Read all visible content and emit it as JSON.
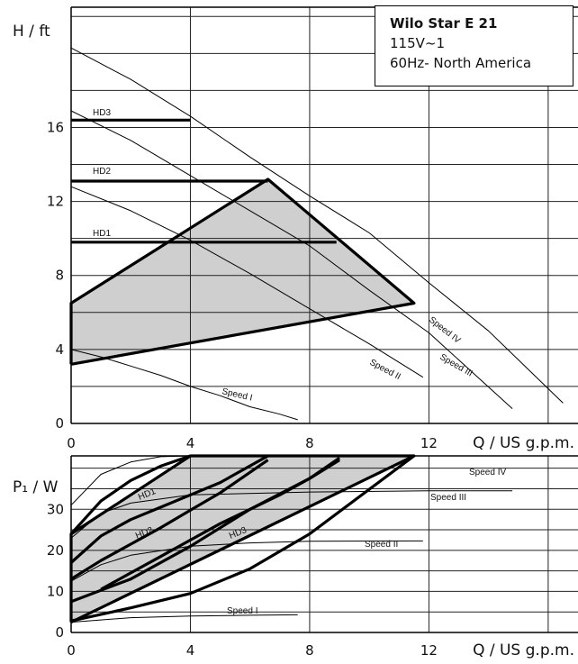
{
  "chart_data": [
    {
      "type": "line",
      "title": "Wilo Star E 21",
      "subtitle_lines": [
        "115V~1",
        "60Hz-  North America"
      ],
      "ylabel": "H / ft",
      "xlabel": "Q / US g.p.m.",
      "xlim": [
        0,
        17
      ],
      "ylim": [
        0,
        22.5
      ],
      "xticks": [
        0,
        4,
        8,
        12
      ],
      "yticks": [
        0,
        4,
        8,
        12,
        16
      ],
      "grid": true,
      "operating_region": [
        [
          0,
          3.2
        ],
        [
          0,
          6.5
        ],
        [
          6.6,
          13.2
        ],
        [
          11.5,
          6.5
        ]
      ],
      "series": [
        {
          "name": "Speed I",
          "x": [
            0,
            1,
            2,
            3,
            4,
            5,
            6,
            7,
            7.6
          ],
          "y": [
            4.0,
            3.6,
            3.1,
            2.6,
            2.0,
            1.5,
            0.9,
            0.5,
            0.2
          ]
        },
        {
          "name": "Speed II",
          "x": [
            0,
            2,
            4,
            6,
            8,
            10,
            11.8
          ],
          "y": [
            12.8,
            11.5,
            9.9,
            8.1,
            6.2,
            4.3,
            2.5
          ]
        },
        {
          "name": "Speed III",
          "x": [
            0,
            2,
            4,
            6,
            8,
            10,
            12,
            14.8
          ],
          "y": [
            16.9,
            15.3,
            13.4,
            11.5,
            9.6,
            7.2,
            4.9,
            0.8
          ]
        },
        {
          "name": "Speed IV",
          "x": [
            0,
            2,
            4,
            6,
            8,
            10,
            12,
            14,
            16.5
          ],
          "y": [
            20.3,
            18.6,
            16.6,
            14.4,
            12.3,
            10.3,
            7.6,
            5.0,
            1.1
          ]
        },
        {
          "name": "HD1",
          "x": [
            0,
            8.9
          ],
          "y": [
            9.8,
            9.8
          ]
        },
        {
          "name": "HD2",
          "x": [
            0,
            6.6
          ],
          "y": [
            13.1,
            13.1
          ]
        },
        {
          "name": "HD3",
          "x": [
            0,
            4.0
          ],
          "y": [
            16.4,
            16.4
          ]
        }
      ],
      "labels": {
        "HD1": "HD1",
        "HD2": "HD2",
        "HD3": "HD3",
        "speed1": "Speed I",
        "speed2": "Speed II",
        "speed3": "Speed III",
        "speed4": "Speed IV"
      }
    },
    {
      "type": "line",
      "ylabel": "P₁ / W",
      "xlabel": "Q / US g.p.m.",
      "xlim": [
        0,
        17
      ],
      "ylim": [
        0,
        43
      ],
      "xticks": [
        0,
        4,
        8,
        12
      ],
      "yticks": [
        0,
        10,
        20,
        30
      ],
      "grid": true,
      "operating_region": [
        [
          0,
          2.5
        ],
        [
          11.5,
          43
        ],
        [
          4,
          43
        ],
        [
          0,
          24
        ]
      ],
      "series": [
        {
          "name": "Speed I",
          "x": [
            0,
            2,
            4,
            6,
            7.6
          ],
          "y": [
            2.5,
            3.6,
            4.0,
            4.2,
            4.3
          ]
        },
        {
          "name": "Speed II",
          "x": [
            0,
            1,
            2,
            4,
            6,
            8,
            11.8
          ],
          "y": [
            12.5,
            16.5,
            18.8,
            21.0,
            21.8,
            22.2,
            22.3
          ]
        },
        {
          "name": "Speed III",
          "x": [
            0,
            1,
            2,
            4,
            8,
            12,
            14.8
          ],
          "y": [
            23.0,
            29.0,
            31.5,
            33.5,
            34.2,
            34.5,
            34.5
          ]
        },
        {
          "name": "Speed IV",
          "x": [
            0,
            1,
            2,
            3,
            4,
            8,
            12,
            16.5
          ],
          "y": [
            31.0,
            38.5,
            41.5,
            42.8,
            43.0,
            43.0,
            43.0,
            43.0
          ]
        },
        {
          "name": "HD1",
          "x": [
            0,
            1,
            2,
            3,
            4,
            5,
            6.6
          ],
          "y": [
            13.0,
            17.5,
            21.5,
            25.5,
            29.8,
            34.0,
            42.0
          ]
        },
        {
          "name": "HD2",
          "x": [
            0,
            2,
            4,
            6,
            8,
            9
          ],
          "y": [
            7.5,
            13.0,
            21.0,
            30.0,
            37.5,
            42.0
          ]
        },
        {
          "name": "HD3",
          "x": [
            0,
            2,
            4,
            6,
            8,
            11.5
          ],
          "y": [
            2.8,
            6.0,
            9.5,
            15.5,
            24.0,
            43.0
          ]
        },
        {
          "name": "HD1 upper",
          "x": [
            0,
            1,
            2,
            3,
            4
          ],
          "y": [
            24.0,
            32.0,
            37.0,
            40.5,
            43.0
          ]
        },
        {
          "name": "HD2 upper",
          "x": [
            0,
            1,
            2,
            3,
            4,
            5,
            6.6
          ],
          "y": [
            17.0,
            23.5,
            27.5,
            30.5,
            33.5,
            36.5,
            43.0
          ]
        },
        {
          "name": "HD3 upper",
          "x": [
            1,
            2,
            3,
            4,
            5,
            6,
            7,
            8,
            9
          ],
          "y": [
            10.5,
            14.5,
            18.5,
            22.5,
            26.5,
            30.0,
            33.5,
            37.5,
            42.5
          ]
        }
      ],
      "labels": {
        "HD1": "HD1",
        "HD2": "HD2",
        "HD3": "HD3",
        "speed1": "Speed I",
        "speed2": "Speed II",
        "speed3": "Speed III",
        "speed4": "Speed IV"
      }
    }
  ]
}
